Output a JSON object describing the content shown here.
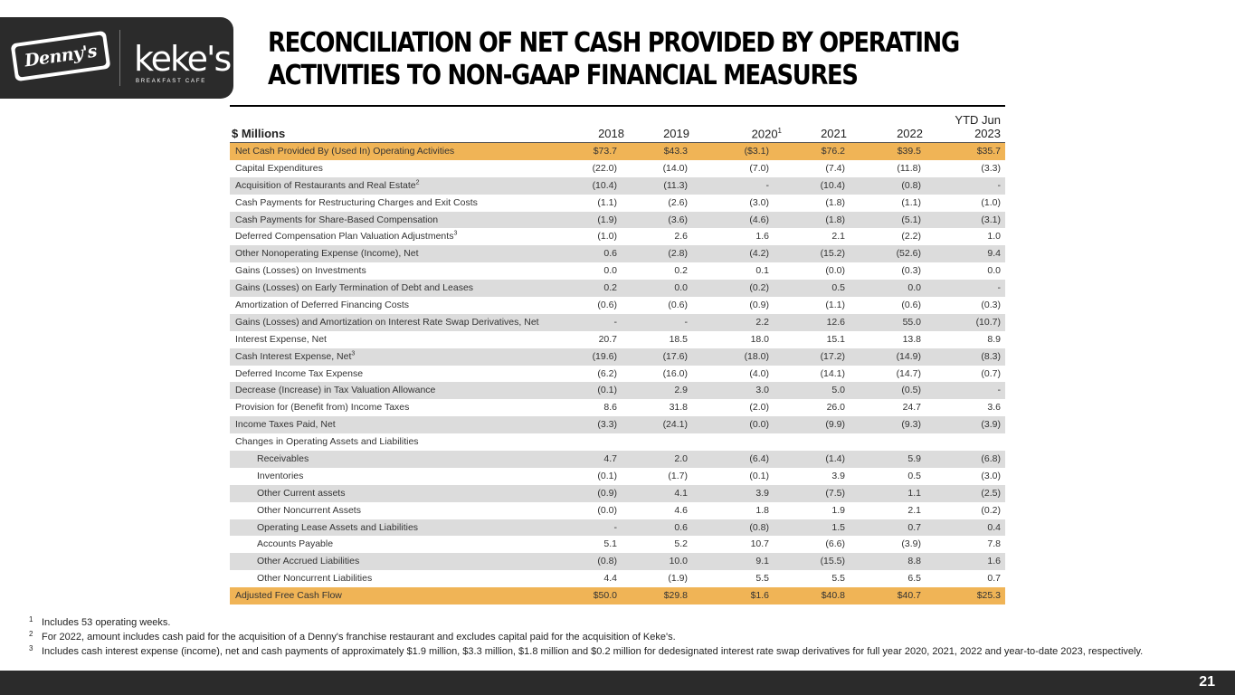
{
  "logos": {
    "dennys": "Denny's",
    "kekes": "keke's",
    "kekes_sub": "BREAKFAST CAFE"
  },
  "title": "RECONCILIATION OF NET CASH PROVIDED BY OPERATING ACTIVITIES TO NON-GAAP FINANCIAL MEASURES",
  "table": {
    "label": "$ Millions",
    "columns": [
      {
        "text": "2018",
        "sup": ""
      },
      {
        "text": "2019",
        "sup": ""
      },
      {
        "text": "2020",
        "sup": "1"
      },
      {
        "text": "2021",
        "sup": ""
      },
      {
        "text": "2022",
        "sup": ""
      },
      {
        "text": "YTD Jun 2023",
        "sup": ""
      }
    ],
    "rows": [
      {
        "label": "Net Cash Provided By (Used In) Operating Activities",
        "sup": "",
        "style": "hl",
        "indent": false,
        "values": [
          "$73.7",
          "$43.3",
          "($3.1)",
          "$76.2",
          "$39.5",
          "$35.7"
        ]
      },
      {
        "label": "Capital Expenditures",
        "sup": "",
        "style": "",
        "indent": false,
        "values": [
          "(22.0)",
          "(14.0)",
          "(7.0)",
          "(7.4)",
          "(11.8)",
          "(3.3)"
        ]
      },
      {
        "label": "Acquisition of Restaurants and Real Estate",
        "sup": "2",
        "style": "shade",
        "indent": false,
        "values": [
          "(10.4)",
          "(11.3)",
          "-",
          "(10.4)",
          "(0.8)",
          "-"
        ]
      },
      {
        "label": "Cash Payments for Restructuring Charges and Exit Costs",
        "sup": "",
        "style": "",
        "indent": false,
        "values": [
          "(1.1)",
          "(2.6)",
          "(3.0)",
          "(1.8)",
          "(1.1)",
          "(1.0)"
        ]
      },
      {
        "label": "Cash Payments for Share-Based Compensation",
        "sup": "",
        "style": "shade",
        "indent": false,
        "values": [
          "(1.9)",
          "(3.6)",
          "(4.6)",
          "(1.8)",
          "(5.1)",
          "(3.1)"
        ]
      },
      {
        "label": "Deferred Compensation Plan Valuation Adjustments",
        "sup": "3",
        "style": "",
        "indent": false,
        "values": [
          "(1.0)",
          "2.6",
          "1.6",
          "2.1",
          "(2.2)",
          "1.0"
        ]
      },
      {
        "label": "Other Nonoperating Expense (Income), Net",
        "sup": "",
        "style": "shade",
        "indent": false,
        "values": [
          "0.6",
          "(2.8)",
          "(4.2)",
          "(15.2)",
          "(52.6)",
          "9.4"
        ]
      },
      {
        "label": "Gains (Losses) on Investments",
        "sup": "",
        "style": "",
        "indent": false,
        "values": [
          "0.0",
          "0.2",
          "0.1",
          "(0.0)",
          "(0.3)",
          "0.0"
        ]
      },
      {
        "label": "Gains (Losses) on Early Termination of Debt and Leases",
        "sup": "",
        "style": "shade",
        "indent": false,
        "values": [
          "0.2",
          "0.0",
          "(0.2)",
          "0.5",
          "0.0",
          "-"
        ]
      },
      {
        "label": "Amortization of Deferred Financing Costs",
        "sup": "",
        "style": "",
        "indent": false,
        "values": [
          "(0.6)",
          "(0.6)",
          "(0.9)",
          "(1.1)",
          "(0.6)",
          "(0.3)"
        ]
      },
      {
        "label": "Gains (Losses) and Amortization on Interest Rate Swap Derivatives, Net",
        "sup": "",
        "style": "shade",
        "indent": false,
        "values": [
          "-",
          "-",
          "2.2",
          "12.6",
          "55.0",
          "(10.7)"
        ]
      },
      {
        "label": "Interest Expense, Net",
        "sup": "",
        "style": "",
        "indent": false,
        "values": [
          "20.7",
          "18.5",
          "18.0",
          "15.1",
          "13.8",
          "8.9"
        ]
      },
      {
        "label": "Cash Interest Expense, Net",
        "sup": "3",
        "style": "shade",
        "indent": false,
        "values": [
          "(19.6)",
          "(17.6)",
          "(18.0)",
          "(17.2)",
          "(14.9)",
          "(8.3)"
        ]
      },
      {
        "label": "Deferred Income Tax Expense",
        "sup": "",
        "style": "",
        "indent": false,
        "values": [
          "(6.2)",
          "(16.0)",
          "(4.0)",
          "(14.1)",
          "(14.7)",
          "(0.7)"
        ]
      },
      {
        "label": "Decrease (Increase) in Tax Valuation Allowance",
        "sup": "",
        "style": "shade",
        "indent": false,
        "values": [
          "(0.1)",
          "2.9",
          "3.0",
          "5.0",
          "(0.5)",
          "-"
        ]
      },
      {
        "label": "Provision for (Benefit from) Income Taxes",
        "sup": "",
        "style": "",
        "indent": false,
        "values": [
          "8.6",
          "31.8",
          "(2.0)",
          "26.0",
          "24.7",
          "3.6"
        ]
      },
      {
        "label": "Income Taxes Paid, Net",
        "sup": "",
        "style": "shade",
        "indent": false,
        "values": [
          "(3.3)",
          "(24.1)",
          "(0.0)",
          "(9.9)",
          "(9.3)",
          "(3.9)"
        ]
      },
      {
        "label": "Changes in Operating Assets and Liabilities",
        "sup": "",
        "style": "",
        "indent": false,
        "values": [
          "",
          "",
          "",
          "",
          "",
          ""
        ]
      },
      {
        "label": "Receivables",
        "sup": "",
        "style": "shade",
        "indent": true,
        "values": [
          "4.7",
          "2.0",
          "(6.4)",
          "(1.4)",
          "5.9",
          "(6.8)"
        ]
      },
      {
        "label": "Inventories",
        "sup": "",
        "style": "",
        "indent": true,
        "values": [
          "(0.1)",
          "(1.7)",
          "(0.1)",
          "3.9",
          "0.5",
          "(3.0)"
        ]
      },
      {
        "label": "Other Current assets",
        "sup": "",
        "style": "shade",
        "indent": true,
        "values": [
          "(0.9)",
          "4.1",
          "3.9",
          "(7.5)",
          "1.1",
          "(2.5)"
        ]
      },
      {
        "label": "Other Noncurrent Assets",
        "sup": "",
        "style": "",
        "indent": true,
        "values": [
          "(0.0)",
          "4.6",
          "1.8",
          "1.9",
          "2.1",
          "(0.2)"
        ]
      },
      {
        "label": "Operating Lease Assets and Liabilities",
        "sup": "",
        "style": "shade",
        "indent": true,
        "values": [
          "-",
          "0.6",
          "(0.8)",
          "1.5",
          "0.7",
          "0.4"
        ]
      },
      {
        "label": "Accounts Payable",
        "sup": "",
        "style": "",
        "indent": true,
        "values": [
          "5.1",
          "5.2",
          "10.7",
          "(6.6)",
          "(3.9)",
          "7.8"
        ]
      },
      {
        "label": "Other Accrued Liabilities",
        "sup": "",
        "style": "shade",
        "indent": true,
        "values": [
          "(0.8)",
          "10.0",
          "9.1",
          "(15.5)",
          "8.8",
          "1.6"
        ]
      },
      {
        "label": "Other Noncurrent Liabilities",
        "sup": "",
        "style": "",
        "indent": true,
        "values": [
          "4.4",
          "(1.9)",
          "5.5",
          "5.5",
          "6.5",
          "0.7"
        ]
      },
      {
        "label": "Adjusted Free Cash Flow",
        "sup": "",
        "style": "hl",
        "indent": false,
        "values": [
          "$50.0",
          "$29.8",
          "$1.6",
          "$40.8",
          "$40.7",
          "$25.3"
        ]
      }
    ]
  },
  "footnotes": [
    {
      "mark": "1",
      "text": "Includes 53 operating weeks."
    },
    {
      "mark": "2",
      "text": "For 2022, amount includes cash paid for the acquisition of a Denny's franchise restaurant and excludes capital paid for the acquisition of Keke's."
    },
    {
      "mark": "3",
      "text": "Includes cash interest expense (income), net and cash payments of approximately $1.9 million, $3.3 million, $1.8 million and $0.2 million for dedesignated interest rate swap derivatives for full year 2020, 2021, 2022 and year-to-date 2023, respectively."
    }
  ],
  "page_number": "21"
}
